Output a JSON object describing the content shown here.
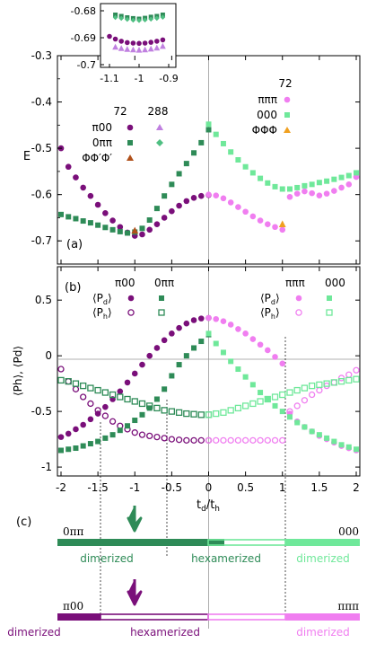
{
  "colors": {
    "purple": "#7a0f7a",
    "pink": "#f07ef0",
    "dgreen": "#2e8b57",
    "lgreen": "#6fe89a",
    "orange": "#f0a020",
    "brown": "#b0501a",
    "lpurple": "#c080e0",
    "mgreen": "#4fbf82"
  },
  "panel_labels": {
    "a": "(a)",
    "b": "(b)",
    "c": "(c)"
  },
  "legend_a": {
    "n72_left": "72",
    "n288": "288",
    "n72_right": "72",
    "pi00": "π00",
    "zeropipi": "0ππ",
    "phiphi": "ΦΦ′Φ′",
    "pipipi": "πππ",
    "zero00": "000",
    "phiphiphi": "ΦΦΦ"
  },
  "legend_b": {
    "pi00": "π00",
    "zeropipi": "0ππ",
    "pipipi": "πππ",
    "zero00": "000",
    "pd": "⟨P",
    "pd_sub": "d",
    "ph_sub": "h",
    "close": "⟩"
  },
  "phase": {
    "green_left": "0ππ",
    "green_right": "000",
    "green_lab1": "dimerized",
    "green_lab2": "hexamerized",
    "green_lab3": "dimerized",
    "purple_left": "π00",
    "purple_right": "πππ",
    "purple_lab1": "dimerized",
    "purple_lab2": "hexamerized",
    "purple_lab3": "dimerized"
  },
  "chart_data": [
    {
      "type": "scatter",
      "panel": "(a)",
      "ylabel": "E",
      "xlim": [
        -2,
        2
      ],
      "ylim": [
        -0.75,
        -0.3
      ],
      "yticks": [
        "-0.3",
        "-0.4",
        "-0.5",
        "-0.6",
        "-0.7"
      ],
      "series": [
        {
          "name": "π00",
          "x": [
            -2.0,
            -1.9,
            -1.8,
            -1.7,
            -1.6,
            -1.5,
            -1.4,
            -1.3,
            -1.2,
            -1.1,
            -1.0,
            -0.9,
            -0.8,
            -0.7,
            -0.6,
            -0.5,
            -0.4,
            -0.3,
            -0.2,
            -0.1,
            0.0
          ],
          "y": [
            -0.5,
            -0.54,
            -0.563,
            -0.585,
            -0.603,
            -0.622,
            -0.64,
            -0.656,
            -0.67,
            -0.682,
            -0.689,
            -0.686,
            -0.676,
            -0.664,
            -0.65,
            -0.636,
            -0.624,
            -0.614,
            -0.607,
            -0.603,
            -0.601
          ]
        },
        {
          "name": "0ππ",
          "x": [
            -2.0,
            -1.9,
            -1.8,
            -1.7,
            -1.6,
            -1.5,
            -1.4,
            -1.3,
            -1.2,
            -1.1,
            -1.0,
            -0.9,
            -0.8,
            -0.7,
            -0.6,
            -0.5,
            -0.4,
            -0.3,
            -0.2,
            -0.1,
            0.0
          ],
          "y": [
            -0.643,
            -0.648,
            -0.652,
            -0.657,
            -0.661,
            -0.666,
            -0.671,
            -0.676,
            -0.68,
            -0.683,
            -0.681,
            -0.673,
            -0.655,
            -0.63,
            -0.603,
            -0.578,
            -0.555,
            -0.533,
            -0.51,
            -0.488,
            -0.46
          ]
        },
        {
          "name": "πππ",
          "x": [
            0.0,
            0.1,
            0.2,
            0.3,
            0.4,
            0.5,
            0.6,
            0.7,
            0.8,
            0.9,
            1.0,
            1.1,
            1.2,
            1.3,
            1.4,
            1.5,
            1.6,
            1.7,
            1.8,
            1.9,
            2.0
          ],
          "y": [
            -0.6,
            -0.602,
            -0.608,
            -0.617,
            -0.627,
            -0.637,
            -0.647,
            -0.656,
            -0.664,
            -0.67,
            -0.676,
            -0.605,
            -0.598,
            -0.593,
            -0.597,
            -0.602,
            -0.598,
            -0.592,
            -0.585,
            -0.578,
            -0.562
          ]
        },
        {
          "name": "000",
          "x": [
            0.0,
            0.1,
            0.2,
            0.3,
            0.4,
            0.5,
            0.6,
            0.7,
            0.8,
            0.9,
            1.0,
            1.1,
            1.2,
            1.3,
            1.4,
            1.5,
            1.6,
            1.7,
            1.8,
            1.9,
            2.0
          ],
          "y": [
            -0.448,
            -0.47,
            -0.49,
            -0.508,
            -0.525,
            -0.54,
            -0.553,
            -0.565,
            -0.575,
            -0.583,
            -0.588,
            -0.588,
            -0.585,
            -0.581,
            -0.578,
            -0.574,
            -0.571,
            -0.567,
            -0.563,
            -0.559,
            -0.553
          ]
        },
        {
          "name": "ΦΦ′Φ′",
          "x": [
            -1.0
          ],
          "y": [
            -0.678
          ]
        },
        {
          "name": "ΦΦΦ",
          "x": [
            1.0
          ],
          "y": [
            -0.664
          ]
        }
      ]
    },
    {
      "type": "scatter",
      "panel": "inset",
      "xlim": [
        -1.1,
        -0.9
      ],
      "ylim": [
        -0.7,
        -0.678
      ],
      "xticks": [
        "-1.1",
        "-1",
        "-0.9"
      ],
      "yticks": [
        "-0.68",
        "-0.69",
        "-0.7"
      ],
      "series": [
        {
          "name": "0ππ 72",
          "x": [
            -1.08,
            -1.06,
            -1.04,
            -1.02,
            -1.0,
            -0.98,
            -0.96,
            -0.94,
            -0.92
          ],
          "y": [
            -0.6815,
            -0.682,
            -0.6825,
            -0.6828,
            -0.683,
            -0.6827,
            -0.6823,
            -0.682,
            -0.6815
          ]
        },
        {
          "name": "0ππ 288",
          "x": [
            -1.08,
            -1.06,
            -1.04,
            -1.02,
            -1.0,
            -0.98,
            -0.96,
            -0.94,
            -0.92
          ],
          "y": [
            -0.6825,
            -0.6828,
            -0.6832,
            -0.6835,
            -0.6836,
            -0.6834,
            -0.6831,
            -0.6828,
            -0.6824
          ]
        },
        {
          "name": "π00 72",
          "x": [
            -1.1,
            -1.08,
            -1.06,
            -1.04,
            -1.02,
            -1.0,
            -0.98,
            -0.96,
            -0.94,
            -0.92
          ],
          "y": [
            -0.6895,
            -0.6905,
            -0.6913,
            -0.6918,
            -0.692,
            -0.6921,
            -0.692,
            -0.6917,
            -0.6913,
            -0.6908
          ]
        },
        {
          "name": "π00 288",
          "x": [
            -1.08,
            -1.06,
            -1.04,
            -1.02,
            -1.0,
            -0.98,
            -0.96,
            -0.94,
            -0.92
          ],
          "y": [
            -0.6935,
            -0.694,
            -0.6943,
            -0.6945,
            -0.6946,
            -0.6945,
            -0.6942,
            -0.6938,
            -0.6932
          ]
        }
      ]
    },
    {
      "type": "scatter",
      "panel": "(b)",
      "xlabel": "td/th",
      "ylabel": "⟨Ph⟩, ⟨Pd⟩",
      "xlim": [
        -2,
        2
      ],
      "ylim": [
        -1.08,
        0.8
      ],
      "xticks": [
        "-2",
        "-1.5",
        "-1",
        "-0.5",
        "0",
        "0.5",
        "1",
        "1.5",
        "2"
      ],
      "yticks": [
        "0.5",
        "0",
        "-0.5",
        "-1"
      ],
      "series": [
        {
          "name": "⟨Pd⟩ π00",
          "x": [
            -2.0,
            -1.9,
            -1.8,
            -1.7,
            -1.6,
            -1.5,
            -1.4,
            -1.3,
            -1.2,
            -1.1,
            -1.0,
            -0.9,
            -0.8,
            -0.7,
            -0.6,
            -0.5,
            -0.4,
            -0.3,
            -0.2,
            -0.1,
            0.0
          ],
          "y": [
            -0.73,
            -0.7,
            -0.66,
            -0.62,
            -0.57,
            -0.52,
            -0.46,
            -0.39,
            -0.32,
            -0.24,
            -0.16,
            -0.08,
            0.0,
            0.07,
            0.14,
            0.2,
            0.25,
            0.29,
            0.32,
            0.335,
            0.34
          ]
        },
        {
          "name": "⟨Ph⟩ π00",
          "x": [
            -2.0,
            -1.9,
            -1.8,
            -1.7,
            -1.6,
            -1.5,
            -1.4,
            -1.3,
            -1.2,
            -1.1,
            -1.0,
            -0.9,
            -0.8,
            -0.7,
            -0.6,
            -0.5,
            -0.4,
            -0.3,
            -0.2,
            -0.1,
            0.0
          ],
          "y": [
            -0.12,
            -0.23,
            -0.3,
            -0.37,
            -0.43,
            -0.49,
            -0.54,
            -0.59,
            -0.63,
            -0.66,
            -0.69,
            -0.71,
            -0.72,
            -0.73,
            -0.74,
            -0.75,
            -0.755,
            -0.76,
            -0.76,
            -0.76,
            -0.76
          ]
        },
        {
          "name": "⟨Pd⟩ 0ππ",
          "x": [
            -2.0,
            -1.9,
            -1.8,
            -1.7,
            -1.6,
            -1.5,
            -1.4,
            -1.3,
            -1.2,
            -1.1,
            -1.0,
            -0.9,
            -0.8,
            -0.7,
            -0.6,
            -0.5,
            -0.4,
            -0.3,
            -0.2,
            -0.1,
            0.0
          ],
          "y": [
            -0.85,
            -0.84,
            -0.83,
            -0.81,
            -0.79,
            -0.77,
            -0.74,
            -0.71,
            -0.67,
            -0.63,
            -0.58,
            -0.53,
            -0.47,
            -0.39,
            -0.3,
            -0.18,
            -0.08,
            0.0,
            0.07,
            0.13,
            0.19
          ]
        },
        {
          "name": "⟨Ph⟩ 0ππ",
          "x": [
            -2.0,
            -1.9,
            -1.8,
            -1.7,
            -1.6,
            -1.5,
            -1.4,
            -1.3,
            -1.2,
            -1.1,
            -1.0,
            -0.9,
            -0.8,
            -0.7,
            -0.6,
            -0.5,
            -0.4,
            -0.3,
            -0.2,
            -0.1,
            0.0
          ],
          "y": [
            -0.22,
            -0.23,
            -0.25,
            -0.27,
            -0.29,
            -0.31,
            -0.33,
            -0.35,
            -0.37,
            -0.39,
            -0.41,
            -0.43,
            -0.45,
            -0.47,
            -0.49,
            -0.5,
            -0.51,
            -0.52,
            -0.525,
            -0.53,
            -0.53
          ]
        },
        {
          "name": "⟨Pd⟩ πππ",
          "x": [
            0.0,
            0.1,
            0.2,
            0.3,
            0.4,
            0.5,
            0.6,
            0.7,
            0.8,
            0.9,
            1.0,
            1.1,
            1.2,
            1.3,
            1.4,
            1.5,
            1.6,
            1.7,
            1.8,
            1.9,
            2.0
          ],
          "y": [
            0.34,
            0.33,
            0.31,
            0.28,
            0.24,
            0.2,
            0.15,
            0.1,
            0.05,
            -0.01,
            -0.07,
            -0.52,
            -0.59,
            -0.64,
            -0.68,
            -0.72,
            -0.75,
            -0.78,
            -0.81,
            -0.83,
            -0.85
          ]
        },
        {
          "name": "⟨Ph⟩ πππ",
          "x": [
            0.0,
            0.1,
            0.2,
            0.3,
            0.4,
            0.5,
            0.6,
            0.7,
            0.8,
            0.9,
            1.0,
            1.1,
            1.2,
            1.3,
            1.4,
            1.5,
            1.6,
            1.7,
            1.8,
            1.9,
            2.0
          ],
          "y": [
            -0.76,
            -0.76,
            -0.76,
            -0.76,
            -0.76,
            -0.76,
            -0.76,
            -0.76,
            -0.76,
            -0.76,
            -0.76,
            -0.5,
            -0.45,
            -0.4,
            -0.35,
            -0.31,
            -0.27,
            -0.24,
            -0.2,
            -0.17,
            -0.13
          ]
        },
        {
          "name": "⟨Pd⟩ 000",
          "x": [
            0.0,
            0.1,
            0.2,
            0.3,
            0.4,
            0.5,
            0.6,
            0.7,
            0.8,
            0.9,
            1.0,
            1.1,
            1.2,
            1.3,
            1.4,
            1.5,
            1.6,
            1.7,
            1.8,
            1.9,
            2.0
          ],
          "y": [
            0.2,
            0.11,
            0.03,
            -0.05,
            -0.12,
            -0.19,
            -0.26,
            -0.33,
            -0.39,
            -0.45,
            -0.5,
            -0.55,
            -0.6,
            -0.64,
            -0.68,
            -0.71,
            -0.74,
            -0.77,
            -0.8,
            -0.82,
            -0.84
          ]
        },
        {
          "name": "⟨Ph⟩ 000",
          "x": [
            0.0,
            0.1,
            0.2,
            0.3,
            0.4,
            0.5,
            0.6,
            0.7,
            0.8,
            0.9,
            1.0,
            1.1,
            1.2,
            1.3,
            1.4,
            1.5,
            1.6,
            1.7,
            1.8,
            1.9,
            2.0
          ],
          "y": [
            -0.53,
            -0.52,
            -0.51,
            -0.49,
            -0.47,
            -0.45,
            -0.43,
            -0.41,
            -0.39,
            -0.37,
            -0.35,
            -0.33,
            -0.31,
            -0.29,
            -0.27,
            -0.26,
            -0.25,
            -0.24,
            -0.23,
            -0.22,
            -0.21
          ]
        }
      ]
    }
  ]
}
